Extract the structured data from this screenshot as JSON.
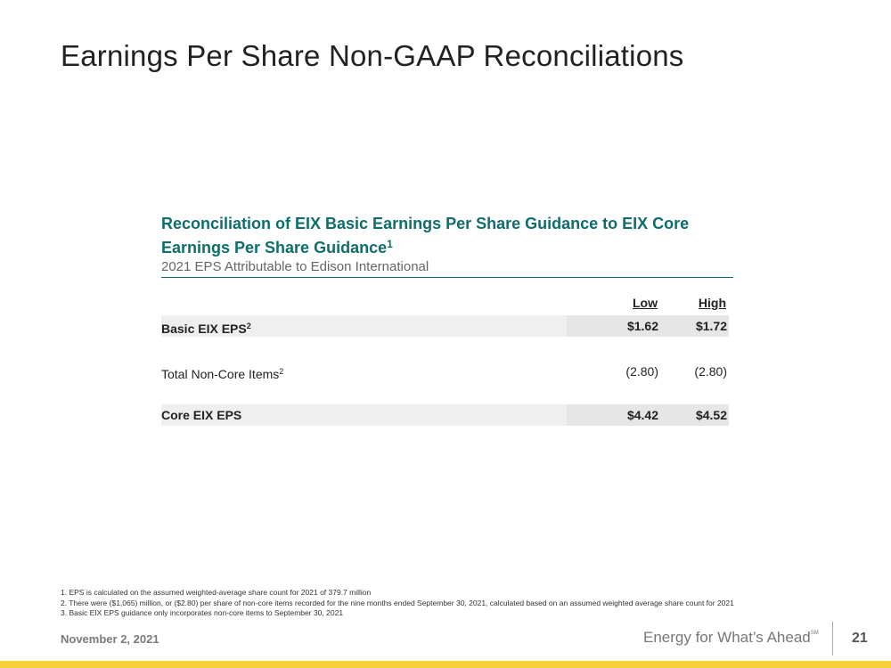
{
  "slide": {
    "title": "Earnings Per Share Non-GAAP Reconciliations",
    "date": "November 2, 2021",
    "tagline": "Energy for What’s Ahead",
    "tagline_mark": "SM",
    "page_number": "21"
  },
  "table": {
    "heading": "Reconciliation of EIX Basic Earnings Per Share Guidance to EIX Core Earnings Per Share Guidance",
    "heading_footnote": "1",
    "subheading": "2021 EPS Attributable to Edison International",
    "columns": [
      "Low",
      "High"
    ],
    "rows": [
      {
        "label": "Basic EIX EPS",
        "footnote": "2",
        "low": "$1.62",
        "high": "$1.72"
      },
      {
        "label": "Total Non-Core Items",
        "footnote": "2",
        "low": "(2.80)",
        "high": "(2.80)"
      },
      {
        "label": "Core EIX EPS",
        "footnote": "",
        "low": "$4.42",
        "high": "$4.52"
      }
    ]
  },
  "footnotes": [
    "1.  EPS is calculated on the assumed weighted-average share count for 2021 of 379.7 million",
    "2.  There were ($1,065) million, or ($2.80) per share of non-core items recorded for the nine months ended September 30, 2021, calculated based on an assumed weighted average share count for 2021",
    "3.  Basic EIX EPS guidance only incorporates non-core items to September 30, 2021"
  ],
  "colors": {
    "accent_teal": "#0e6e6c",
    "bottom_bar": "#f6d13a"
  }
}
